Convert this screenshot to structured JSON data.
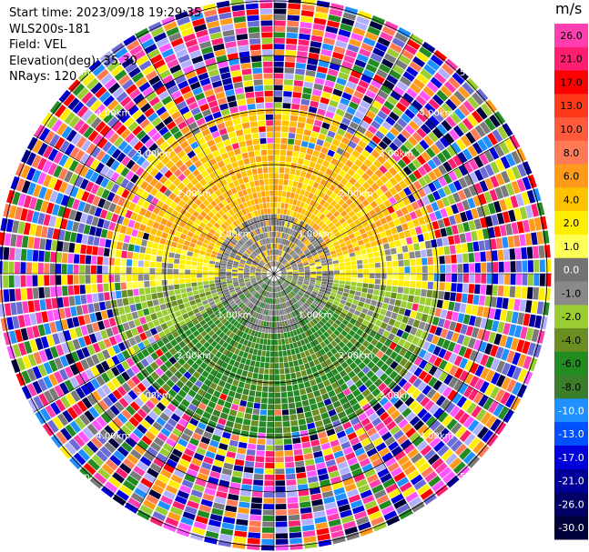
{
  "info": {
    "start_time": "Start time: 2023/09/18 19:29:35",
    "instrument": "WLS200s-181",
    "field": "Field: VEL",
    "elevation": "Elevation(deg): 35.30",
    "nrays": "NRays: 120"
  },
  "colorbar": {
    "unit": "m/s",
    "ticks": [
      "26.0",
      "21.0",
      "17.0",
      "13.0",
      "10.0",
      "8.0",
      "6.0",
      "4.0",
      "2.0",
      "1.0",
      "0.0",
      "-1.0",
      "-2.0",
      "-4.0",
      "-6.0",
      "-8.0",
      "-10.0",
      "-13.0",
      "-17.0",
      "-21.0",
      "-26.0",
      "-30.0"
    ],
    "colors": [
      "#ff3fb0",
      "#ff1f72",
      "#ff0000",
      "#ff3a1a",
      "#ff5a3c",
      "#ff7a55",
      "#ff9a1a",
      "#ffc200",
      "#ffee00",
      "#ffff55",
      "#737373",
      "#8a8a8a",
      "#9acd32",
      "#6b8e23",
      "#228b22",
      "#3a7d2a",
      "#1e90ff",
      "#0050ff",
      "#0000dd",
      "#000099",
      "#000066",
      "#00003a"
    ]
  },
  "range_rings": {
    "labels": [
      "1.00km",
      "2.00km",
      "3.00km",
      "4.00km",
      "5.00km"
    ]
  }
}
